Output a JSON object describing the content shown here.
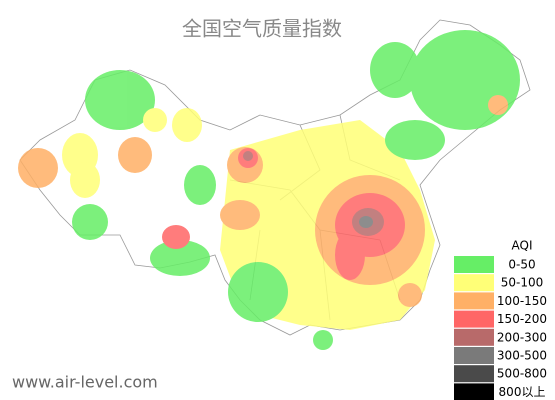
{
  "title": "全国空气质量指数",
  "legend": {
    "title": "AQI",
    "items": [
      {
        "label": "0-50",
        "color": "#66ee66"
      },
      {
        "label": "50-100",
        "color": "#ffff77"
      },
      {
        "label": "100-150",
        "color": "#ffb066"
      },
      {
        "label": "150-200",
        "color": "#ff6666"
      },
      {
        "label": "200-300",
        "color": "#b86a6a"
      },
      {
        "label": "300-500",
        "color": "#7a7a7a"
      },
      {
        "label": "500-800",
        "color": "#4a4a4a"
      },
      {
        "label": "800以上",
        "color": "#000000"
      }
    ]
  },
  "watermark": "www.air-level.com"
}
